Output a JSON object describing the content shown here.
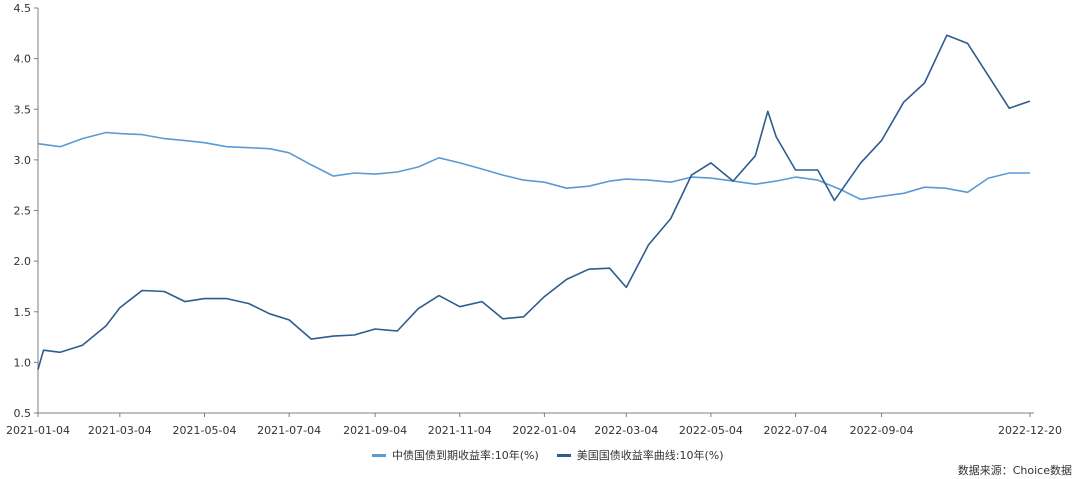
{
  "chart_data": {
    "type": "line",
    "ylim": [
      0.5,
      4.5
    ],
    "y_ticks": [
      "0.5",
      "1.0",
      "1.5",
      "2.0",
      "2.5",
      "3.0",
      "3.5",
      "4.0",
      "4.5"
    ],
    "x_tick_labels": [
      "2021-01-04",
      "2021-03-04",
      "2021-05-04",
      "2021-07-04",
      "2021-09-04",
      "2021-11-04",
      "2022-01-04",
      "2022-03-04",
      "2022-05-04",
      "2022-07-04",
      "2022-09-04",
      "2022-12-20"
    ],
    "x_range": [
      "2021-01-04",
      "2022-12-20"
    ],
    "grid": false,
    "legend_position": "bottom-center",
    "series": [
      {
        "name": "中债国债到期收益率:10年(%)",
        "color": "#5b9bd5",
        "points": [
          [
            "2021-01-04",
            3.16
          ],
          [
            "2021-01-20",
            3.13
          ],
          [
            "2021-02-05",
            3.21
          ],
          [
            "2021-02-22",
            3.27
          ],
          [
            "2021-03-04",
            3.26
          ],
          [
            "2021-03-20",
            3.25
          ],
          [
            "2021-04-05",
            3.21
          ],
          [
            "2021-04-20",
            3.19
          ],
          [
            "2021-05-04",
            3.17
          ],
          [
            "2021-05-20",
            3.13
          ],
          [
            "2021-06-05",
            3.12
          ],
          [
            "2021-06-20",
            3.11
          ],
          [
            "2021-07-04",
            3.07
          ],
          [
            "2021-07-20",
            2.95
          ],
          [
            "2021-08-05",
            2.84
          ],
          [
            "2021-08-20",
            2.87
          ],
          [
            "2021-09-04",
            2.86
          ],
          [
            "2021-09-20",
            2.88
          ],
          [
            "2021-10-05",
            2.93
          ],
          [
            "2021-10-20",
            3.02
          ],
          [
            "2021-11-04",
            2.97
          ],
          [
            "2021-11-20",
            2.91
          ],
          [
            "2021-12-05",
            2.85
          ],
          [
            "2021-12-20",
            2.8
          ],
          [
            "2022-01-04",
            2.78
          ],
          [
            "2022-01-20",
            2.72
          ],
          [
            "2022-02-05",
            2.74
          ],
          [
            "2022-02-20",
            2.79
          ],
          [
            "2022-03-04",
            2.81
          ],
          [
            "2022-03-20",
            2.8
          ],
          [
            "2022-04-05",
            2.78
          ],
          [
            "2022-04-20",
            2.83
          ],
          [
            "2022-05-04",
            2.82
          ],
          [
            "2022-05-20",
            2.79
          ],
          [
            "2022-06-05",
            2.76
          ],
          [
            "2022-06-20",
            2.79
          ],
          [
            "2022-07-04",
            2.83
          ],
          [
            "2022-07-20",
            2.8
          ],
          [
            "2022-08-05",
            2.71
          ],
          [
            "2022-08-20",
            2.61
          ],
          [
            "2022-09-04",
            2.64
          ],
          [
            "2022-09-20",
            2.67
          ],
          [
            "2022-10-05",
            2.73
          ],
          [
            "2022-10-20",
            2.72
          ],
          [
            "2022-11-05",
            2.68
          ],
          [
            "2022-11-20",
            2.82
          ],
          [
            "2022-12-05",
            2.87
          ],
          [
            "2022-12-20",
            2.87
          ]
        ]
      },
      {
        "name": "美国国债收益率曲线:10年(%)",
        "color": "#2f5c8e",
        "points": [
          [
            "2021-01-04",
            0.93
          ],
          [
            "2021-01-08",
            1.12
          ],
          [
            "2021-01-20",
            1.1
          ],
          [
            "2021-02-05",
            1.17
          ],
          [
            "2021-02-22",
            1.36
          ],
          [
            "2021-03-04",
            1.54
          ],
          [
            "2021-03-20",
            1.71
          ],
          [
            "2021-04-05",
            1.7
          ],
          [
            "2021-04-20",
            1.6
          ],
          [
            "2021-05-04",
            1.63
          ],
          [
            "2021-05-20",
            1.63
          ],
          [
            "2021-06-05",
            1.58
          ],
          [
            "2021-06-20",
            1.48
          ],
          [
            "2021-07-04",
            1.42
          ],
          [
            "2021-07-20",
            1.23
          ],
          [
            "2021-08-05",
            1.26
          ],
          [
            "2021-08-20",
            1.27
          ],
          [
            "2021-09-04",
            1.33
          ],
          [
            "2021-09-20",
            1.31
          ],
          [
            "2021-10-05",
            1.53
          ],
          [
            "2021-10-20",
            1.66
          ],
          [
            "2021-11-04",
            1.55
          ],
          [
            "2021-11-20",
            1.6
          ],
          [
            "2021-12-05",
            1.43
          ],
          [
            "2021-12-20",
            1.45
          ],
          [
            "2022-01-04",
            1.65
          ],
          [
            "2022-01-20",
            1.82
          ],
          [
            "2022-02-05",
            1.92
          ],
          [
            "2022-02-20",
            1.93
          ],
          [
            "2022-03-04",
            1.74
          ],
          [
            "2022-03-20",
            2.16
          ],
          [
            "2022-04-05",
            2.42
          ],
          [
            "2022-04-20",
            2.85
          ],
          [
            "2022-05-04",
            2.97
          ],
          [
            "2022-05-20",
            2.79
          ],
          [
            "2022-06-05",
            3.04
          ],
          [
            "2022-06-14",
            3.48
          ],
          [
            "2022-06-20",
            3.23
          ],
          [
            "2022-07-04",
            2.9
          ],
          [
            "2022-07-20",
            2.9
          ],
          [
            "2022-08-01",
            2.6
          ],
          [
            "2022-08-20",
            2.97
          ],
          [
            "2022-09-04",
            3.19
          ],
          [
            "2022-09-20",
            3.57
          ],
          [
            "2022-10-05",
            3.76
          ],
          [
            "2022-10-21",
            4.23
          ],
          [
            "2022-11-05",
            4.15
          ],
          [
            "2022-11-20",
            3.83
          ],
          [
            "2022-12-05",
            3.51
          ],
          [
            "2022-12-20",
            3.58
          ]
        ]
      }
    ]
  },
  "source_text": "数据来源：Choice数据"
}
